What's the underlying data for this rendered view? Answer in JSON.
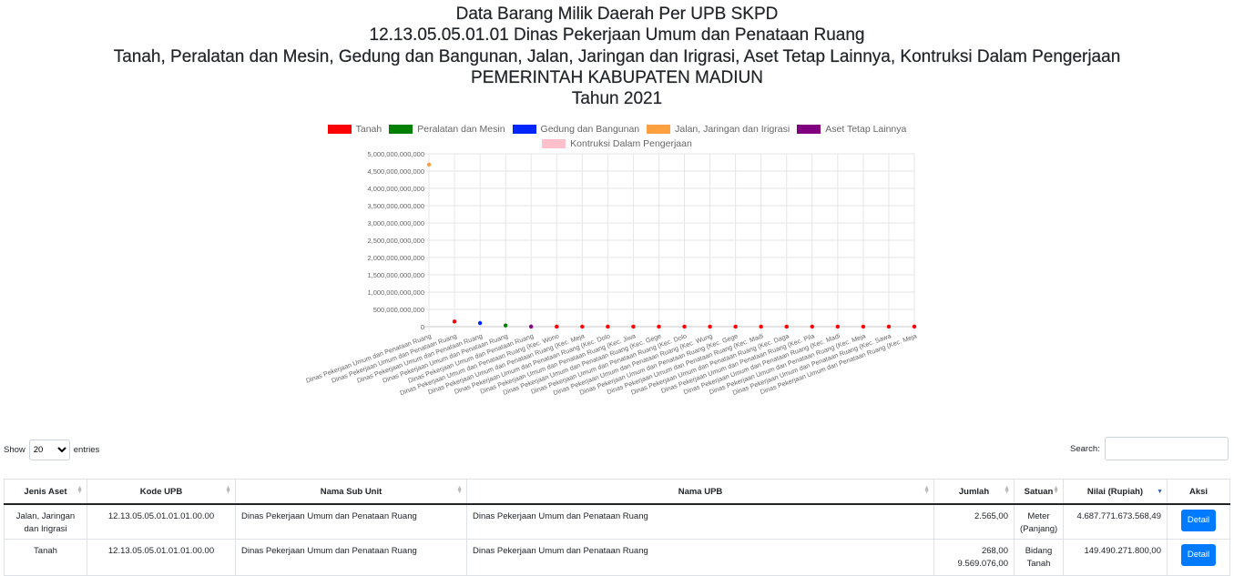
{
  "header": {
    "line1": "Data Barang Milik Daerah Per UPB SKPD",
    "line2": "12.13.05.05.01.01 Dinas Pekerjaan Umum dan Penataan Ruang",
    "line3": "Tanah, Peralatan dan Mesin, Gedung dan Bangunan, Jalan, Jaringan dan Irigrasi, Aset Tetap Lainnya, Kontruksi Dalam Pengerjaan",
    "line4": "PEMERINTAH KABUPATEN MADIUN",
    "line5": "Tahun 2021"
  },
  "chart_data": {
    "type": "scatter",
    "legend": [
      {
        "name": "Tanah",
        "color": "#ff0000"
      },
      {
        "name": "Peralatan dan Mesin",
        "color": "#008000"
      },
      {
        "name": "Gedung dan Bangunan",
        "color": "#0026ff"
      },
      {
        "name": "Jalan, Jaringan dan Irigrasi",
        "color": "#ffa040"
      },
      {
        "name": "Aset Tetap Lainnya",
        "color": "#800080"
      },
      {
        "name": "Kontruksi Dalam Pengerjaan",
        "color": "#ffc0cb"
      }
    ],
    "y_ticks": [
      "5,000,000,000,000",
      "4,500,000,000,000",
      "4,000,000,000,000",
      "3,500,000,000,000",
      "3,000,000,000,000",
      "2,500,000,000,000",
      "2,000,000,000,000",
      "1,500,000,000,000",
      "1,000,000,000,000",
      "500,000,000,000",
      "0"
    ],
    "ylim": [
      0,
      5000000000000
    ],
    "categories": [
      "Dinas Pekerjaan Umum dan Penataan Ruang",
      "Dinas Pekerjaan Umum dan Penataan Ruang",
      "Dinas Pekerjaan Umum dan Penataan Ruang",
      "Dinas Pekerjaan Umum dan Penataan Ruang",
      "Dinas Pekerjaan Umum dan Penataan Ruang",
      "Dinas Pekerjaan Umum dan Penataan Ruang (Kec. Wono",
      "Dinas Pekerjaan Umum dan Penataan Ruang (Kec. Meja",
      "Dinas Pekerjaan Umum dan Penataan Ruang (Kec. Dolo",
      "Dinas Pekerjaan Umum dan Penataan Ruang (Kec. Jiwa",
      "Dinas Pekerjaan Umum dan Penataan Ruang (Kec. Gege",
      "Dinas Pekerjaan Umum dan Penataan Ruang (Kec. Dolo",
      "Dinas Pekerjaan Umum dan Penataan Ruang (Kec. Wung",
      "Dinas Pekerjaan Umum dan Penataan Ruang (Kec. Gege",
      "Dinas Pekerjaan Umum dan Penataan Ruang (Kec. Madi",
      "Dinas Pekerjaan Umum dan Penataan Ruang (Kec. Daga",
      "Dinas Pekerjaan Umum dan Penataan Ruang (Kec. Pila",
      "Dinas Pekerjaan Umum dan Penataan Ruang (Kec. Madi",
      "Dinas Pekerjaan Umum dan Penataan Ruang (Kec. Meja",
      "Dinas Pekerjaan Umum dan Penataan Ruang (Kec. Sawa",
      "Dinas Pekerjaan Umum dan Penataan Ruang (Kec. Meja"
    ],
    "points": [
      {
        "category_index": 0,
        "series": "Jalan, Jaringan dan Irigrasi",
        "value": 4687771673568.49
      },
      {
        "category_index": 1,
        "series": "Tanah",
        "value": 149490271800
      },
      {
        "category_index": 2,
        "series": "Gedung dan Bangunan",
        "value": 105000000000
      },
      {
        "category_index": 3,
        "series": "Peralatan dan Mesin",
        "value": 35000000000
      },
      {
        "category_index": 4,
        "series": "Aset Tetap Lainnya",
        "value": 3000000000
      },
      {
        "category_index": 5,
        "series": "Tanah",
        "value": 1000000000
      },
      {
        "category_index": 6,
        "series": "Tanah",
        "value": 1000000000
      },
      {
        "category_index": 7,
        "series": "Tanah",
        "value": 1000000000
      },
      {
        "category_index": 8,
        "series": "Tanah",
        "value": 1000000000
      },
      {
        "category_index": 9,
        "series": "Tanah",
        "value": 1000000000
      },
      {
        "category_index": 10,
        "series": "Tanah",
        "value": 1000000000
      },
      {
        "category_index": 11,
        "series": "Tanah",
        "value": 1000000000
      },
      {
        "category_index": 12,
        "series": "Tanah",
        "value": 1000000000
      },
      {
        "category_index": 13,
        "series": "Tanah",
        "value": 1000000000
      },
      {
        "category_index": 14,
        "series": "Tanah",
        "value": 1000000000
      },
      {
        "category_index": 15,
        "series": "Tanah",
        "value": 1000000000
      },
      {
        "category_index": 16,
        "series": "Tanah",
        "value": 1000000000
      },
      {
        "category_index": 17,
        "series": "Tanah",
        "value": 1000000000
      },
      {
        "category_index": 18,
        "series": "Tanah",
        "value": 1000000000
      },
      {
        "category_index": 19,
        "series": "Tanah",
        "value": 1000000000
      }
    ],
    "grid": true
  },
  "controls": {
    "show_label": "Show",
    "entries_label": "entries",
    "page_size": "20",
    "search_label": "Search:"
  },
  "table": {
    "headers": [
      "Jenis Aset",
      "Kode UPB",
      "Nama Sub Unit",
      "Nama UPB",
      "Jumlah",
      "Satuan",
      "Nilai (Rupiah)",
      "Aksi"
    ],
    "rows": [
      {
        "jenis": "Jalan, Jaringan dan Irigrasi",
        "kode": "12.13.05.05.01.01.01.00.00",
        "sub_unit": "Dinas Pekerjaan Umum dan Penataan Ruang",
        "upb": "Dinas Pekerjaan Umum dan Penataan Ruang",
        "jumlah": "2.565,00",
        "satuan": "Meter (Panjang)",
        "nilai": "4.687.771.673.568,49",
        "aksi": "Detail"
      },
      {
        "jenis": "Tanah",
        "kode": "12.13.05.05.01.01.01.00.00",
        "sub_unit": "Dinas Pekerjaan Umum dan Penataan Ruang",
        "upb": "Dinas Pekerjaan Umum dan Penataan Ruang",
        "jumlah": "268,00",
        "jumlah2": "9.569.076,00",
        "satuan": "Bidang Tanah",
        "nilai": "149.490.271.800,00",
        "aksi": "Detail"
      }
    ]
  }
}
